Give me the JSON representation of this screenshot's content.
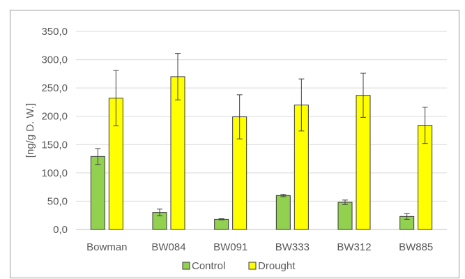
{
  "chart_data": {
    "type": "bar",
    "ylabel": "[ng/g D. W.]",
    "xlabel": "",
    "ylim": [
      0,
      350
    ],
    "y_ticks": [
      "0,0",
      "50,0",
      "100,0",
      "150,0",
      "200,0",
      "250,0",
      "300,0",
      "350,0"
    ],
    "y_tick_values": [
      0,
      50,
      100,
      150,
      200,
      250,
      300,
      350
    ],
    "categories": [
      "Bowman",
      "BW084",
      "BW091",
      "BW333",
      "BW312",
      "BW885"
    ],
    "series": [
      {
        "name": "Control",
        "color": "#92d050",
        "values": [
          129,
          30,
          18,
          60,
          48,
          23
        ],
        "error": [
          14,
          6,
          1,
          2,
          4,
          5
        ]
      },
      {
        "name": "Drought",
        "color": "#ffff00",
        "values": [
          232,
          270,
          199,
          220,
          237,
          184
        ],
        "error": [
          49,
          41,
          39,
          46,
          39,
          32
        ]
      }
    ],
    "grid": true,
    "legend_position": "bottom"
  }
}
